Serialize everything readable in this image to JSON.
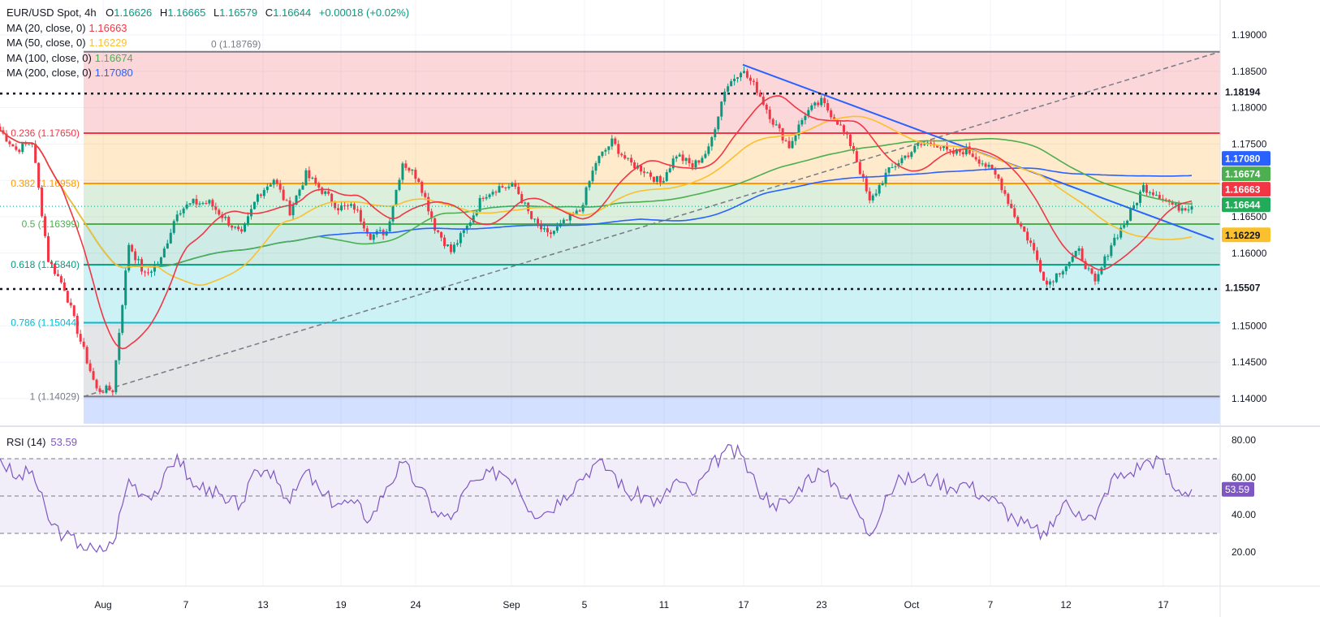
{
  "header": {
    "symbol": "EUR/USD Spot, 4h",
    "open_label": "O",
    "open": "1.16626",
    "high_label": "H",
    "high": "1.16665",
    "low_label": "L",
    "low": "1.16579",
    "close_label": "C",
    "close": "1.16644",
    "change": "+0.00018 (+0.02%)"
  },
  "indicators": [
    {
      "label": "MA (20, close, 0)",
      "value": "1.16663",
      "color": "#f23645"
    },
    {
      "label": "MA (50, close, 0)",
      "value": "1.16229",
      "color": "#fbc02d"
    },
    {
      "label": "MA (100, close, 0)",
      "value": "1.16674",
      "color": "#4caf50"
    },
    {
      "label": "MA (200, close, 0)",
      "value": "1.17080",
      "color": "#2962ff"
    }
  ],
  "rsi": {
    "label": "RSI (14)",
    "value": "53.59",
    "color": "#7e57c2"
  },
  "chart_data": [
    {
      "type": "candlestick",
      "title": "EUR/USD Spot, 4h",
      "ylim": [
        1.1365,
        1.1925
      ],
      "y_ticks": [
        "1.19000",
        "1.18500",
        "1.18000",
        "1.17500",
        "1.16500",
        "1.16000",
        "1.15000",
        "1.14500",
        "1.14000"
      ],
      "x_tick_labels": [
        "Aug",
        "7",
        "13",
        "19",
        "24",
        "Sep",
        "5",
        "11",
        "17",
        "23",
        "Oct",
        "7",
        "12",
        "17"
      ],
      "closes": [
        1.1769,
        1.1742,
        1.1753,
        1.1591,
        1.1552,
        1.1479,
        1.1412,
        1.1412,
        1.1613,
        1.1569,
        1.1591,
        1.1658,
        1.1669,
        1.1669,
        1.1647,
        1.1624,
        1.168,
        1.1702,
        1.1658,
        1.1708,
        1.1686,
        1.1663,
        1.1663,
        1.1624,
        1.163,
        1.1725,
        1.1702,
        1.1636,
        1.1602,
        1.1636,
        1.168,
        1.1691,
        1.1691,
        1.1647,
        1.1624,
        1.1641,
        1.1658,
        1.1725,
        1.1753,
        1.1725,
        1.1714,
        1.1697,
        1.1736,
        1.1719,
        1.1742,
        1.1825,
        1.1853,
        1.1825,
        1.1781,
        1.1747,
        1.1792,
        1.1808,
        1.1781,
        1.1742,
        1.1669,
        1.1708,
        1.173,
        1.1747,
        1.1753,
        1.1736,
        1.1742,
        1.1725,
        1.1702,
        1.1652,
        1.1613,
        1.1557,
        1.158,
        1.1602,
        1.1557,
        1.1613,
        1.1647,
        1.1691,
        1.168,
        1.1663,
        1.16644
      ],
      "moving_averages": [
        20,
        50,
        100,
        200
      ],
      "fibonacci": [
        {
          "ratio": "0",
          "label": "0 (1.18769)",
          "price": 1.18769,
          "color": "#787b86"
        },
        {
          "ratio": "0.236",
          "label": "0.236 (1.17650)",
          "price": 1.1765,
          "color": "#f23645"
        },
        {
          "ratio": "0.382",
          "label": "0.382 (1.16958)",
          "price": 1.16958,
          "color": "#ff9800"
        },
        {
          "ratio": "0.5",
          "label": "0.5 (1.16399)",
          "price": 1.16399,
          "color": "#4caf50"
        },
        {
          "ratio": "0.618",
          "label": "0.618 (1.15840)",
          "price": 1.1584,
          "color": "#089981"
        },
        {
          "ratio": "0.786",
          "label": "0.786 (1.15044)",
          "price": 1.15044,
          "color": "#00bcd4"
        },
        {
          "ratio": "1",
          "label": "1 (1.14029)",
          "price": 1.14029,
          "color": "#787b86"
        }
      ],
      "horizontal_levels": [
        1.18194,
        1.15507
      ],
      "price_badges": [
        {
          "value": "1.18194",
          "price": 1.18194,
          "bg": "#ffffff",
          "fg": "#131722"
        },
        {
          "value": "1.17080",
          "price": 1.1708,
          "bg": "#2962ff",
          "fg": "#ffffff"
        },
        {
          "value": "1.16674",
          "price": 1.16674,
          "bg": "#4caf50",
          "fg": "#ffffff"
        },
        {
          "value": "1.16663",
          "price": 1.16663,
          "bg": "#f23645",
          "fg": "#ffffff"
        },
        {
          "value": "1.16644",
          "price": 1.16644,
          "bg": "#22ab58",
          "fg": "#ffffff"
        },
        {
          "value": "1.16229",
          "price": 1.16229,
          "bg": "#fbc02d",
          "fg": "#131722"
        },
        {
          "value": "1.15507",
          "price": 1.15507,
          "bg": "#ffffff",
          "fg": "#131722"
        }
      ],
      "trendlines": [
        {
          "name": "descending",
          "from": 1.1859,
          "to": 1.1619,
          "color": "#2962ff"
        },
        {
          "name": "ascending-dashed",
          "from": 1.14029,
          "to": 1.18769,
          "color": "#787b86"
        }
      ]
    },
    {
      "type": "line",
      "title": "RSI (14)",
      "ylim": [
        14,
        84
      ],
      "y_ticks": [
        "80.00",
        "60.00",
        "40.00",
        "20.00"
      ],
      "bands": [
        70,
        50,
        30
      ],
      "values": [
        70,
        59.1,
        63.5,
        37.4,
        28.7,
        24.3,
        20,
        24.3,
        59.1,
        50.4,
        54.8,
        72.2,
        54.8,
        54.8,
        46.1,
        46.1,
        63.5,
        63.5,
        46.1,
        63.5,
        50.4,
        46.1,
        46.1,
        37.4,
        54.8,
        67.8,
        54.8,
        41.7,
        37.4,
        54.8,
        59.1,
        63.5,
        59.1,
        41.7,
        41.7,
        50.4,
        59.1,
        67.8,
        63.5,
        50.4,
        50.4,
        46.1,
        59.1,
        50.4,
        63.5,
        74.3,
        72.2,
        54.8,
        46.1,
        46.1,
        59.1,
        63.5,
        54.8,
        46.1,
        28.7,
        50.4,
        59.1,
        59.1,
        59.1,
        54.8,
        57,
        50.4,
        46.1,
        37.4,
        33,
        28.7,
        46.1,
        41.7,
        37.4,
        59.1,
        61.3,
        67.8,
        70,
        52.6,
        53.59
      ]
    }
  ]
}
